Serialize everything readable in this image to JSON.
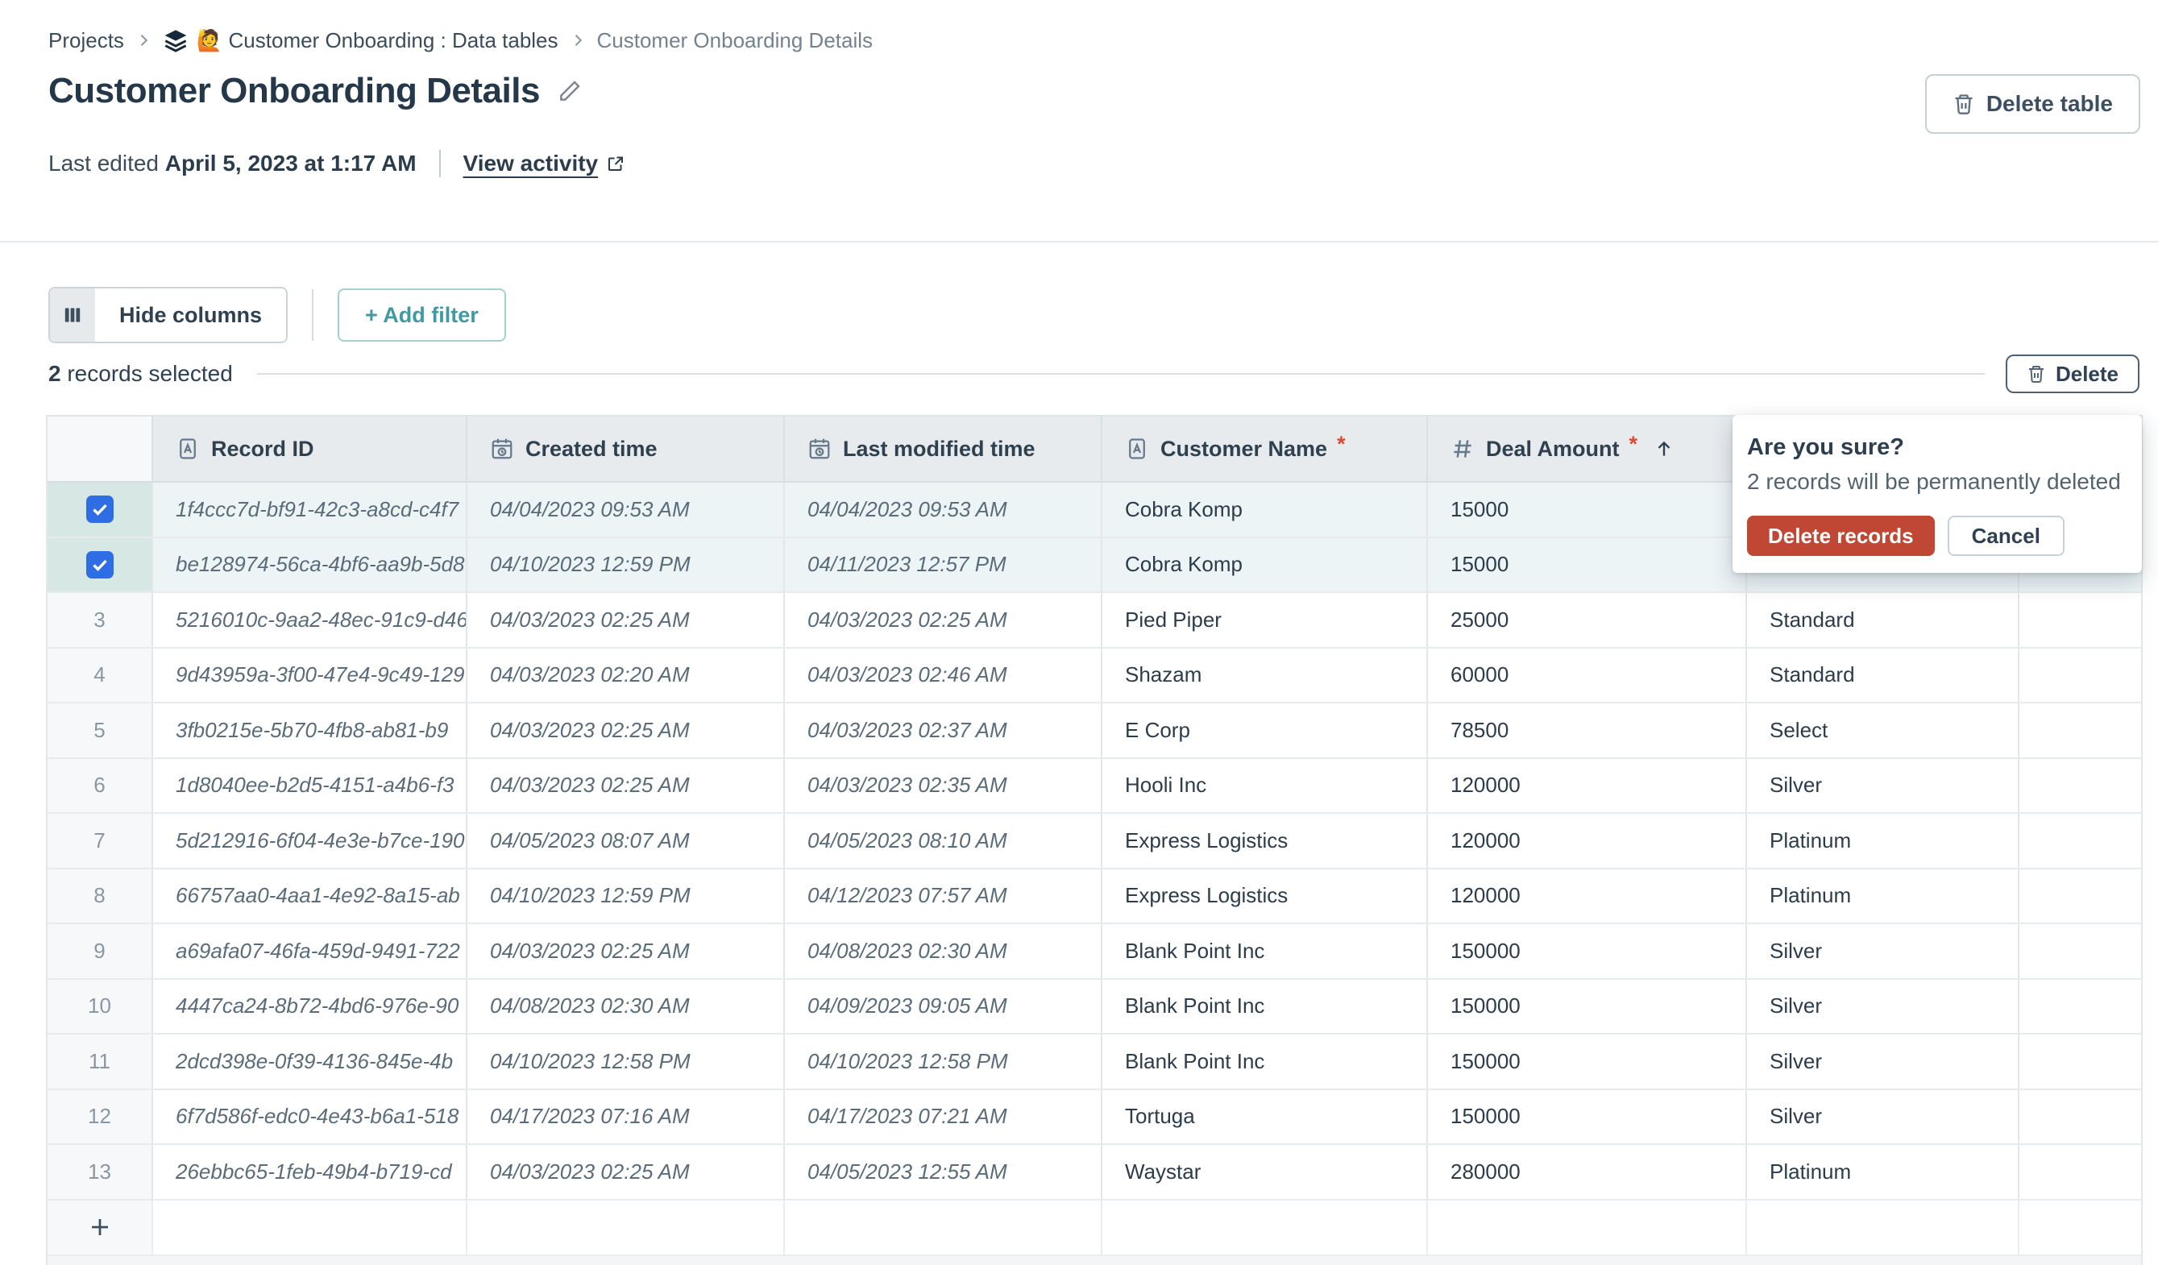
{
  "breadcrumb": {
    "items": [
      "Projects",
      "🙋 Customer Onboarding : Data tables",
      "Customer Onboarding Details"
    ]
  },
  "header": {
    "title": "Customer Onboarding Details",
    "last_edited_prefix": "Last edited",
    "last_edited_date": "April 5, 2023 at 1:17 AM",
    "view_activity_label": "View activity",
    "delete_table_label": "Delete table"
  },
  "toolbar": {
    "hide_columns_label": "Hide columns",
    "add_filter_label": "+ Add filter"
  },
  "selection": {
    "count": "2",
    "label": "records selected",
    "delete_label": "Delete"
  },
  "popup": {
    "title": "Are you sure?",
    "message": "2 records will be permanently deleted",
    "confirm_label": "Delete records",
    "cancel_label": "Cancel"
  },
  "table": {
    "required_marker": "*",
    "columns": [
      {
        "key": "num",
        "label": "",
        "icon": null
      },
      {
        "key": "record",
        "label": "Record ID",
        "icon": "text-field-icon"
      },
      {
        "key": "created",
        "label": "Created time",
        "icon": "calendar-clock-icon"
      },
      {
        "key": "modified",
        "label": "Last modified time",
        "icon": "calendar-clock-icon"
      },
      {
        "key": "customer",
        "label": "Customer Name",
        "icon": "text-field-icon",
        "required": true
      },
      {
        "key": "deal",
        "label": "Deal Amount",
        "icon": "hash-icon",
        "required": true,
        "sorted": "asc"
      },
      {
        "key": "tier",
        "label": "",
        "icon": null
      },
      {
        "key": "extra",
        "label": "",
        "icon": null
      }
    ],
    "rows": [
      {
        "num": 1,
        "selected": true,
        "record": "1f4ccc7d-bf91-42c3-a8cd-c4f7",
        "created": "04/04/2023 09:53 AM",
        "modified": "04/04/2023 09:53 AM",
        "customer": "Cobra Komp",
        "deal": "15000",
        "tier": ""
      },
      {
        "num": 2,
        "selected": true,
        "record": "be128974-56ca-4bf6-aa9b-5d8",
        "created": "04/10/2023 12:59 PM",
        "modified": "04/11/2023 12:57 PM",
        "customer": "Cobra Komp",
        "deal": "15000",
        "tier": ""
      },
      {
        "num": 3,
        "selected": false,
        "record": "5216010c-9aa2-48ec-91c9-d46",
        "created": "04/03/2023 02:25 AM",
        "modified": "04/03/2023 02:25 AM",
        "customer": "Pied Piper",
        "deal": "25000",
        "tier": "Standard"
      },
      {
        "num": 4,
        "selected": false,
        "record": "9d43959a-3f00-47e4-9c49-129",
        "created": "04/03/2023 02:20 AM",
        "modified": "04/03/2023 02:46 AM",
        "customer": "Shazam",
        "deal": "60000",
        "tier": "Standard"
      },
      {
        "num": 5,
        "selected": false,
        "record": "3fb0215e-5b70-4fb8-ab81-b9",
        "created": "04/03/2023 02:25 AM",
        "modified": "04/03/2023 02:37 AM",
        "customer": "E Corp",
        "deal": "78500",
        "tier": "Select"
      },
      {
        "num": 6,
        "selected": false,
        "record": "1d8040ee-b2d5-4151-a4b6-f3",
        "created": "04/03/2023 02:25 AM",
        "modified": "04/03/2023 02:35 AM",
        "customer": "Hooli Inc",
        "deal": "120000",
        "tier": "Silver"
      },
      {
        "num": 7,
        "selected": false,
        "record": "5d212916-6f04-4e3e-b7ce-190",
        "created": "04/05/2023 08:07 AM",
        "modified": "04/05/2023 08:10 AM",
        "customer": "Express Logistics",
        "deal": "120000",
        "tier": "Platinum"
      },
      {
        "num": 8,
        "selected": false,
        "record": "66757aa0-4aa1-4e92-8a15-ab",
        "created": "04/10/2023 12:59 PM",
        "modified": "04/12/2023 07:57 AM",
        "customer": "Express Logistics",
        "deal": "120000",
        "tier": "Platinum"
      },
      {
        "num": 9,
        "selected": false,
        "record": "a69afa07-46fa-459d-9491-722",
        "created": "04/03/2023 02:25 AM",
        "modified": "04/08/2023 02:30 AM",
        "customer": "Blank Point Inc",
        "deal": "150000",
        "tier": "Silver"
      },
      {
        "num": 10,
        "selected": false,
        "record": "4447ca24-8b72-4bd6-976e-90",
        "created": "04/08/2023 02:30 AM",
        "modified": "04/09/2023 09:05 AM",
        "customer": "Blank Point Inc",
        "deal": "150000",
        "tier": "Silver"
      },
      {
        "num": 11,
        "selected": false,
        "record": "2dcd398e-0f39-4136-845e-4b",
        "created": "04/10/2023 12:58 PM",
        "modified": "04/10/2023 12:58 PM",
        "customer": "Blank Point Inc",
        "deal": "150000",
        "tier": "Silver"
      },
      {
        "num": 12,
        "selected": false,
        "record": "6f7d586f-edc0-4e43-b6a1-518",
        "created": "04/17/2023 07:16 AM",
        "modified": "04/17/2023 07:21 AM",
        "customer": "Tortuga",
        "deal": "150000",
        "tier": "Silver"
      },
      {
        "num": 13,
        "selected": false,
        "record": "26ebbc65-1feb-49b4-b719-cd",
        "created": "04/03/2023 02:25 AM",
        "modified": "04/05/2023 12:55 AM",
        "customer": "Waystar",
        "deal": "280000",
        "tier": "Platinum"
      }
    ]
  },
  "icons": [
    "layers-icon",
    "chevron-right-icon",
    "pencil-icon",
    "external-link-icon",
    "trash-icon",
    "columns-icon",
    "text-field-icon",
    "calendar-clock-icon",
    "hash-icon",
    "sort-ascending-icon",
    "checkbox-checked-icon",
    "plus-icon"
  ],
  "colors": {
    "accent_red": "#bf4734",
    "accent_teal": "#3f9aa1",
    "checkbox_blue": "#2e6de4",
    "selected_row_bg": "#ecf4f6",
    "selected_gutter_bg": "#d7e7e3",
    "header_bg": "#e8ebee",
    "required_marker": "#dd4a31"
  }
}
